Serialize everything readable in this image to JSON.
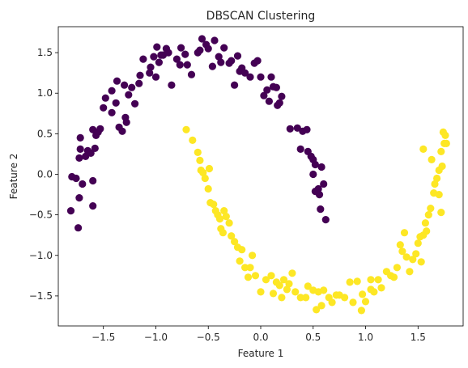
{
  "chart_data": {
    "type": "scatter",
    "title": "DBSCAN Clustering",
    "xlabel": "Feature 1",
    "ylabel": "Feature 2",
    "xlim": [
      -1.93,
      1.93
    ],
    "ylim": [
      -1.87,
      1.82
    ],
    "xticks": [
      -1.5,
      -1.0,
      -0.5,
      0.0,
      0.5,
      1.0,
      1.5
    ],
    "xtick_labels": [
      "−1.5",
      "−1.0",
      "−0.5",
      "0.0",
      "0.5",
      "1.0",
      "1.5"
    ],
    "yticks": [
      -1.5,
      -1.0,
      -0.5,
      0.0,
      0.5,
      1.0,
      1.5
    ],
    "ytick_labels": [
      "−1.5",
      "−1.0",
      "−0.5",
      "0.0",
      "0.5",
      "1.0",
      "1.5"
    ],
    "grid": false,
    "legend": "none",
    "series": [
      {
        "color": "#440154",
        "points": [
          [
            -1.81,
            -0.45
          ],
          [
            -1.8,
            -0.03
          ],
          [
            -1.76,
            -0.05
          ],
          [
            -1.74,
            -0.66
          ],
          [
            -1.73,
            -0.29
          ],
          [
            -1.73,
            0.2
          ],
          [
            -1.72,
            0.31
          ],
          [
            -1.72,
            0.45
          ],
          [
            -1.7,
            -0.12
          ],
          [
            -1.67,
            0.22
          ],
          [
            -1.65,
            0.29
          ],
          [
            -1.62,
            0.26
          ],
          [
            -1.6,
            -0.08
          ],
          [
            -1.6,
            -0.39
          ],
          [
            -1.6,
            0.55
          ],
          [
            -1.58,
            0.32
          ],
          [
            -1.57,
            0.48
          ],
          [
            -1.55,
            0.52
          ],
          [
            -1.53,
            0.56
          ],
          [
            -1.5,
            0.82
          ],
          [
            -1.48,
            0.94
          ],
          [
            -1.42,
            0.76
          ],
          [
            -1.42,
            1.03
          ],
          [
            -1.38,
            0.88
          ],
          [
            -1.37,
            1.15
          ],
          [
            -1.35,
            0.58
          ],
          [
            -1.32,
            0.53
          ],
          [
            -1.3,
            1.1
          ],
          [
            -1.29,
            0.7
          ],
          [
            -1.28,
            0.64
          ],
          [
            -1.26,
            0.98
          ],
          [
            -1.23,
            1.07
          ],
          [
            -1.2,
            0.87
          ],
          [
            -1.16,
            1.12
          ],
          [
            -1.15,
            1.22
          ],
          [
            -1.12,
            1.42
          ],
          [
            -1.06,
            1.25
          ],
          [
            -1.05,
            1.32
          ],
          [
            -1.02,
            1.45
          ],
          [
            -1.0,
            1.2
          ],
          [
            -0.99,
            1.57
          ],
          [
            -0.97,
            1.38
          ],
          [
            -0.95,
            1.47
          ],
          [
            -0.93,
            1.47
          ],
          [
            -0.9,
            1.55
          ],
          [
            -0.88,
            1.5
          ],
          [
            -0.85,
            1.1
          ],
          [
            -0.8,
            1.42
          ],
          [
            -0.77,
            1.35
          ],
          [
            -0.76,
            1.56
          ],
          [
            -0.72,
            1.48
          ],
          [
            -0.7,
            1.35
          ],
          [
            -0.66,
            1.23
          ],
          [
            -0.6,
            1.5
          ],
          [
            -0.58,
            1.53
          ],
          [
            -0.56,
            1.67
          ],
          [
            -0.52,
            1.6
          ],
          [
            -0.5,
            1.55
          ],
          [
            -0.46,
            1.33
          ],
          [
            -0.44,
            1.65
          ],
          [
            -0.4,
            1.45
          ],
          [
            -0.38,
            1.38
          ],
          [
            -0.35,
            1.56
          ],
          [
            -0.3,
            1.37
          ],
          [
            -0.28,
            1.4
          ],
          [
            -0.25,
            1.1
          ],
          [
            -0.22,
            1.46
          ],
          [
            -0.2,
            1.27
          ],
          [
            -0.18,
            1.31
          ],
          [
            -0.15,
            1.25
          ],
          [
            -0.1,
            1.2
          ],
          [
            -0.06,
            1.37
          ],
          [
            -0.03,
            1.4
          ],
          [
            0.0,
            1.2
          ],
          [
            0.03,
            0.97
          ],
          [
            0.06,
            1.04
          ],
          [
            0.08,
            0.9
          ],
          [
            0.1,
            1.2
          ],
          [
            0.12,
            1.08
          ],
          [
            0.15,
            1.07
          ],
          [
            0.16,
            0.85
          ],
          [
            0.18,
            0.88
          ],
          [
            0.2,
            0.96
          ],
          [
            0.28,
            0.56
          ],
          [
            0.35,
            0.57
          ],
          [
            0.38,
            0.31
          ],
          [
            0.4,
            0.53
          ],
          [
            0.44,
            0.55
          ],
          [
            0.45,
            0.28
          ],
          [
            0.48,
            0.22
          ],
          [
            0.5,
            0.18
          ],
          [
            0.5,
            0.0
          ],
          [
            0.52,
            0.12
          ],
          [
            0.52,
            -0.21
          ],
          [
            0.55,
            -0.18
          ],
          [
            0.56,
            -0.25
          ],
          [
            0.57,
            -0.43
          ],
          [
            0.58,
            0.09
          ],
          [
            0.6,
            -0.12
          ],
          [
            0.62,
            -0.56
          ]
        ]
      },
      {
        "color": "#fde725",
        "points": [
          [
            -0.71,
            0.55
          ],
          [
            -0.65,
            0.42
          ],
          [
            -0.6,
            0.27
          ],
          [
            -0.58,
            0.17
          ],
          [
            -0.57,
            0.05
          ],
          [
            -0.55,
            0.02
          ],
          [
            -0.53,
            -0.05
          ],
          [
            -0.5,
            -0.18
          ],
          [
            -0.49,
            0.07
          ],
          [
            -0.48,
            -0.35
          ],
          [
            -0.45,
            -0.37
          ],
          [
            -0.43,
            -0.45
          ],
          [
            -0.41,
            -0.5
          ],
          [
            -0.39,
            -0.55
          ],
          [
            -0.38,
            -0.67
          ],
          [
            -0.36,
            -0.72
          ],
          [
            -0.35,
            -0.45
          ],
          [
            -0.33,
            -0.52
          ],
          [
            -0.3,
            -0.6
          ],
          [
            -0.28,
            -0.76
          ],
          [
            -0.25,
            -0.83
          ],
          [
            -0.22,
            -0.9
          ],
          [
            -0.2,
            -1.07
          ],
          [
            -0.18,
            -0.93
          ],
          [
            -0.15,
            -1.15
          ],
          [
            -0.12,
            -1.27
          ],
          [
            -0.08,
            -1.0
          ],
          [
            -0.05,
            -1.25
          ],
          [
            0.0,
            -1.45
          ],
          [
            0.05,
            -1.3
          ],
          [
            0.1,
            -1.25
          ],
          [
            0.12,
            -1.47
          ],
          [
            0.18,
            -1.37
          ],
          [
            0.2,
            -1.52
          ],
          [
            0.22,
            -1.3
          ],
          [
            0.25,
            -1.42
          ],
          [
            0.27,
            -1.35
          ],
          [
            0.3,
            -1.22
          ],
          [
            0.33,
            -1.45
          ],
          [
            0.38,
            -1.52
          ],
          [
            0.43,
            -1.52
          ],
          [
            0.45,
            -1.38
          ],
          [
            0.5,
            -1.43
          ],
          [
            0.53,
            -1.67
          ],
          [
            0.55,
            -1.45
          ],
          [
            0.58,
            -1.62
          ],
          [
            0.6,
            -1.43
          ],
          [
            0.65,
            -1.52
          ],
          [
            0.68,
            -1.58
          ],
          [
            0.72,
            -1.49
          ],
          [
            0.75,
            -1.49
          ],
          [
            0.8,
            -1.52
          ],
          [
            0.85,
            -1.33
          ],
          [
            0.88,
            -1.58
          ],
          [
            0.92,
            -1.32
          ],
          [
            0.96,
            -1.68
          ],
          [
            0.97,
            -1.48
          ],
          [
            1.0,
            -1.57
          ],
          [
            1.05,
            -1.3
          ],
          [
            1.08,
            -1.45
          ],
          [
            1.12,
            -1.3
          ],
          [
            1.15,
            -1.4
          ],
          [
            1.2,
            -1.2
          ],
          [
            1.24,
            -1.25
          ],
          [
            1.27,
            -1.27
          ],
          [
            1.3,
            -1.15
          ],
          [
            1.33,
            -0.87
          ],
          [
            1.35,
            -0.95
          ],
          [
            1.37,
            -0.72
          ],
          [
            1.39,
            -1.02
          ],
          [
            1.42,
            -1.2
          ],
          [
            1.45,
            -1.05
          ],
          [
            1.48,
            -0.98
          ],
          [
            1.5,
            -0.85
          ],
          [
            1.52,
            -0.77
          ],
          [
            1.53,
            -1.08
          ],
          [
            1.55,
            -0.75
          ],
          [
            1.57,
            -0.6
          ],
          [
            1.58,
            -0.7
          ],
          [
            1.6,
            -0.5
          ],
          [
            1.62,
            -0.42
          ],
          [
            1.63,
            0.18
          ],
          [
            1.65,
            -0.23
          ],
          [
            1.66,
            -0.12
          ],
          [
            1.68,
            -0.05
          ],
          [
            1.7,
            -0.25
          ],
          [
            1.7,
            0.05
          ],
          [
            1.72,
            -0.47
          ],
          [
            1.72,
            0.28
          ],
          [
            1.73,
            0.1
          ],
          [
            1.74,
            0.52
          ],
          [
            1.75,
            0.38
          ],
          [
            1.76,
            0.48
          ],
          [
            1.77,
            0.38
          ],
          [
            1.55,
            0.31
          ],
          [
            1.05,
            -1.42
          ],
          [
            0.15,
            -1.33
          ],
          [
            -0.1,
            -1.15
          ]
        ]
      }
    ]
  }
}
